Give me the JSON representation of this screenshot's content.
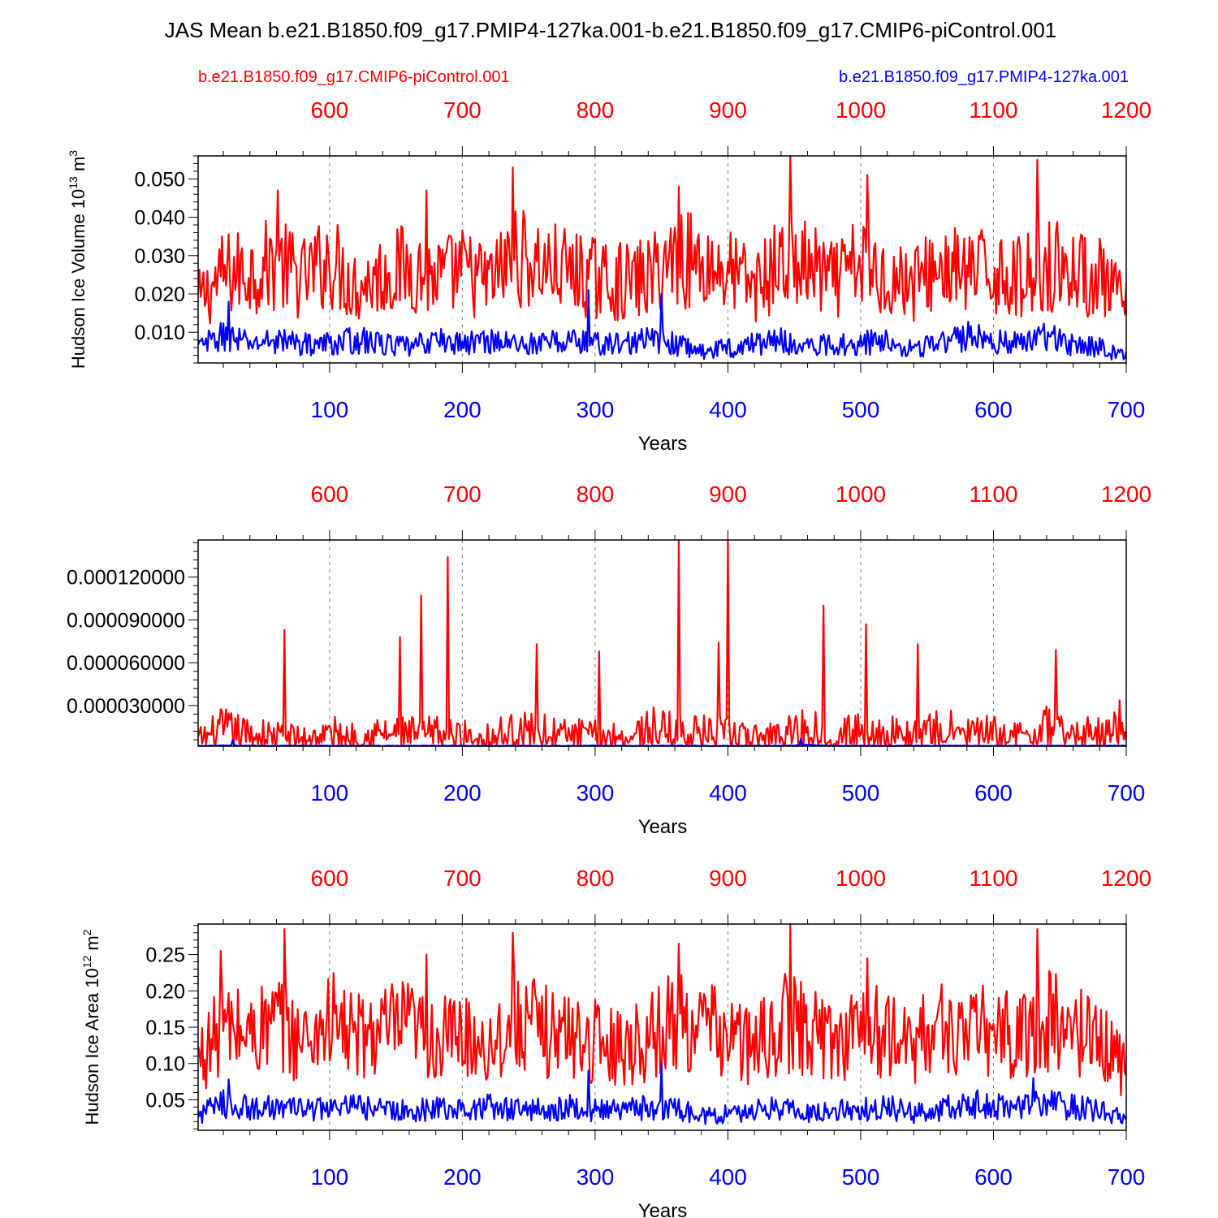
{
  "page": {
    "title": "JAS Mean b.e21.B1850.f09_g17.PMIP4-127ka.001-b.e21.B1850.f09_g17.CMIP6-piControl.001",
    "legend_left": "b.e21.B1850.f09_g17.CMIP6-piControl.001",
    "legend_right": "b.e21.B1850.f09_g17.PMIP4-127ka.001",
    "colors": {
      "control": "#ff0000",
      "pmip": "#0000ff",
      "axis": "#000000",
      "grid": "#808080"
    }
  },
  "chart_data": [
    {
      "type": "line",
      "title": "",
      "xlabel": "Years",
      "ylabel": "Hudson Ice Volume 10",
      "ylabel_exp": "13",
      "ylabel_unit": " m",
      "ylabel_unit_exp": "3",
      "xlim": [
        1,
        700
      ],
      "top_xlim": [
        501,
        1200
      ],
      "ylim": [
        0.002,
        0.056
      ],
      "yticks": [
        0.01,
        0.02,
        0.03,
        0.04,
        0.05
      ],
      "ytick_labels": [
        "0.010",
        "0.020",
        "0.030",
        "0.040",
        "0.050"
      ],
      "xticks": [
        100,
        200,
        300,
        400,
        500,
        600,
        700
      ],
      "top_xticks": [
        600,
        700,
        800,
        900,
        1000,
        1100,
        1200
      ],
      "grid": "vertical dashed at major x ticks",
      "series": [
        {
          "name": "b.e21.B1850.f09_g17.CMIP6-piControl.001",
          "color": "#ff0000",
          "x": [
            1,
            20,
            40,
            60,
            80,
            100,
            120,
            140,
            160,
            180,
            200,
            220,
            240,
            260,
            280,
            300,
            320,
            340,
            360,
            380,
            400,
            420,
            440,
            460,
            480,
            500,
            520,
            540,
            560,
            580,
            600,
            620,
            640,
            660,
            680,
            700
          ],
          "values": [
            0.018,
            0.025,
            0.026,
            0.028,
            0.024,
            0.029,
            0.022,
            0.025,
            0.027,
            0.024,
            0.026,
            0.023,
            0.03,
            0.027,
            0.026,
            0.024,
            0.023,
            0.024,
            0.03,
            0.028,
            0.026,
            0.022,
            0.028,
            0.027,
            0.023,
            0.028,
            0.024,
            0.023,
            0.027,
            0.025,
            0.026,
            0.024,
            0.028,
            0.026,
            0.024,
            0.017
          ]
        },
        {
          "name": "b.e21.B1850.f09_g17.PMIP4-127ka.001",
          "color": "#0000ff",
          "x": [
            1,
            20,
            40,
            60,
            80,
            100,
            120,
            140,
            160,
            180,
            200,
            220,
            240,
            260,
            280,
            300,
            320,
            340,
            360,
            380,
            400,
            420,
            440,
            460,
            480,
            500,
            520,
            540,
            560,
            580,
            600,
            620,
            640,
            660,
            680,
            700
          ],
          "values": [
            0.006,
            0.009,
            0.007,
            0.008,
            0.007,
            0.007,
            0.008,
            0.007,
            0.006,
            0.008,
            0.007,
            0.008,
            0.007,
            0.007,
            0.008,
            0.007,
            0.007,
            0.008,
            0.007,
            0.005,
            0.006,
            0.007,
            0.008,
            0.006,
            0.007,
            0.007,
            0.008,
            0.006,
            0.007,
            0.009,
            0.008,
            0.007,
            0.009,
            0.007,
            0.006,
            0.004
          ]
        }
      ],
      "peaks": [
        {
          "series": 0,
          "x": 447,
          "y": 0.056
        },
        {
          "series": 0,
          "x": 633,
          "y": 0.055
        },
        {
          "series": 0,
          "x": 238,
          "y": 0.053
        },
        {
          "series": 0,
          "x": 505,
          "y": 0.051
        },
        {
          "series": 0,
          "x": 363,
          "y": 0.048
        },
        {
          "series": 0,
          "x": 173,
          "y": 0.047
        },
        {
          "series": 0,
          "x": 61,
          "y": 0.047
        },
        {
          "series": 1,
          "x": 295,
          "y": 0.021
        },
        {
          "series": 1,
          "x": 350,
          "y": 0.02
        },
        {
          "series": 1,
          "x": 24,
          "y": 0.018
        }
      ]
    },
    {
      "type": "line",
      "title": "",
      "xlabel": "Years",
      "ylabel": "",
      "xlim": [
        1,
        700
      ],
      "top_xlim": [
        501,
        1200
      ],
      "ylim": [
        1.5e-06,
        0.000146
      ],
      "yticks": [
        3e-05,
        6e-05,
        9e-05,
        0.00012
      ],
      "ytick_labels": [
        "0.000030000",
        "0.000060000",
        "0.000090000",
        "0.000120000"
      ],
      "xticks": [
        100,
        200,
        300,
        400,
        500,
        600,
        700
      ],
      "top_xticks": [
        600,
        700,
        800,
        900,
        1000,
        1100,
        1200
      ],
      "grid": "vertical dashed at major x ticks",
      "series": [
        {
          "name": "b.e21.B1850.f09_g17.CMIP6-piControl.001",
          "color": "#ff0000",
          "x": [
            1,
            20,
            40,
            60,
            80,
            100,
            120,
            140,
            160,
            180,
            200,
            220,
            240,
            260,
            280,
            300,
            320,
            340,
            360,
            380,
            400,
            420,
            440,
            460,
            480,
            500,
            520,
            540,
            560,
            580,
            600,
            620,
            640,
            660,
            680,
            700
          ],
          "values": [
            8e-06,
            1.6e-05,
            1.2e-05,
            1.1e-05,
            9e-06,
            1.3e-05,
            1e-05,
            1.4e-05,
            1.2e-05,
            1.3e-05,
            1.1e-05,
            1e-05,
            1.5e-05,
            1.3e-05,
            1.2e-05,
            1.1e-05,
            1e-05,
            1.6e-05,
            1.4e-05,
            1.3e-05,
            1.2e-05,
            9e-06,
            1.5e-05,
            1.6e-05,
            1.2e-05,
            1.4e-05,
            1.3e-05,
            1.1e-05,
            1.5e-05,
            1.4e-05,
            1.2e-05,
            1.1e-05,
            1.6e-05,
            1.3e-05,
            1.2e-05,
            2.3e-05
          ]
        },
        {
          "name": "b.e21.B1850.f09_g17.PMIP4-127ka.001",
          "color": "#0000ff",
          "x": [
            1,
            20,
            40,
            60,
            80,
            100,
            120,
            140,
            160,
            180,
            200,
            220,
            240,
            260,
            280,
            300,
            320,
            340,
            360,
            380,
            400,
            420,
            440,
            460,
            480,
            500,
            520,
            540,
            560,
            580,
            600,
            620,
            640,
            660,
            680,
            700
          ],
          "values": [
            1.8e-06,
            2.1e-06,
            1.9e-06,
            1.8e-06,
            1.9e-06,
            1.8e-06,
            1.9e-06,
            1.8e-06,
            1.8e-06,
            1.9e-06,
            1.8e-06,
            1.8e-06,
            1.9e-06,
            1.8e-06,
            1.8e-06,
            1.9e-06,
            1.8e-06,
            1.8e-06,
            1.9e-06,
            1.8e-06,
            1.8e-06,
            1.9e-06,
            1.8e-06,
            2.5e-06,
            1.8e-06,
            1.9e-06,
            1.8e-06,
            1.8e-06,
            1.9e-06,
            1.8e-06,
            1.8e-06,
            1.9e-06,
            1.8e-06,
            1.8e-06,
            1.9e-06,
            1.8e-06
          ]
        }
      ],
      "peaks": [
        {
          "series": 0,
          "x": 363,
          "y": 0.000146
        },
        {
          "series": 0,
          "x": 400,
          "y": 0.000146
        },
        {
          "series": 0,
          "x": 189,
          "y": 0.000134
        },
        {
          "series": 0,
          "x": 169,
          "y": 0.000107
        },
        {
          "series": 0,
          "x": 472,
          "y": 0.0001
        },
        {
          "series": 0,
          "x": 504,
          "y": 8.7e-05
        },
        {
          "series": 0,
          "x": 66,
          "y": 8.3e-05
        },
        {
          "series": 0,
          "x": 153,
          "y": 7.8e-05
        },
        {
          "series": 0,
          "x": 393,
          "y": 7.4e-05
        },
        {
          "series": 0,
          "x": 256,
          "y": 7.3e-05
        },
        {
          "series": 0,
          "x": 543,
          "y": 7.3e-05
        },
        {
          "series": 0,
          "x": 647,
          "y": 6.9e-05
        },
        {
          "series": 0,
          "x": 303,
          "y": 6.8e-05
        },
        {
          "series": 1,
          "x": 27,
          "y": 6e-06
        },
        {
          "series": 1,
          "x": 455,
          "y": 7e-06
        }
      ]
    },
    {
      "type": "line",
      "title": "",
      "xlabel": "Years",
      "ylabel": "Hudson Ice Area 10",
      "ylabel_exp": "12",
      "ylabel_unit": " m",
      "ylabel_unit_exp": "2",
      "xlim": [
        1,
        700
      ],
      "top_xlim": [
        501,
        1200
      ],
      "ylim": [
        0.008,
        0.292
      ],
      "yticks": [
        0.05,
        0.1,
        0.15,
        0.2,
        0.25
      ],
      "ytick_labels": [
        "0.05",
        "0.10",
        "0.15",
        "0.20",
        "0.25"
      ],
      "xticks": [
        100,
        200,
        300,
        400,
        500,
        600,
        700
      ],
      "top_xticks": [
        600,
        700,
        800,
        900,
        1000,
        1100,
        1200
      ],
      "grid": "vertical dashed at major x ticks",
      "series": [
        {
          "name": "b.e21.B1850.f09_g17.CMIP6-piControl.001",
          "color": "#ff0000",
          "x": [
            1,
            20,
            40,
            60,
            80,
            100,
            120,
            140,
            160,
            180,
            200,
            220,
            240,
            260,
            280,
            300,
            320,
            340,
            360,
            380,
            400,
            420,
            440,
            460,
            480,
            500,
            520,
            540,
            560,
            580,
            600,
            620,
            640,
            660,
            680,
            700
          ],
          "values": [
            0.105,
            0.15,
            0.14,
            0.155,
            0.13,
            0.16,
            0.135,
            0.145,
            0.15,
            0.13,
            0.14,
            0.125,
            0.16,
            0.145,
            0.14,
            0.13,
            0.125,
            0.135,
            0.16,
            0.15,
            0.14,
            0.12,
            0.155,
            0.15,
            0.13,
            0.155,
            0.135,
            0.13,
            0.15,
            0.14,
            0.145,
            0.135,
            0.16,
            0.145,
            0.135,
            0.09
          ]
        },
        {
          "name": "b.e21.B1850.f09_g17.PMIP4-127ka.001",
          "color": "#0000ff",
          "x": [
            1,
            20,
            40,
            60,
            80,
            100,
            120,
            140,
            160,
            180,
            200,
            220,
            240,
            260,
            280,
            300,
            320,
            340,
            360,
            380,
            400,
            420,
            440,
            460,
            480,
            500,
            520,
            540,
            560,
            580,
            600,
            620,
            640,
            660,
            680,
            700
          ],
          "values": [
            0.03,
            0.045,
            0.038,
            0.04,
            0.037,
            0.038,
            0.04,
            0.037,
            0.034,
            0.04,
            0.036,
            0.04,
            0.037,
            0.036,
            0.04,
            0.036,
            0.035,
            0.04,
            0.037,
            0.028,
            0.03,
            0.035,
            0.04,
            0.033,
            0.036,
            0.037,
            0.04,
            0.032,
            0.037,
            0.045,
            0.042,
            0.038,
            0.045,
            0.04,
            0.035,
            0.028
          ]
        }
      ],
      "peaks": [
        {
          "series": 0,
          "x": 447,
          "y": 0.292
        },
        {
          "series": 0,
          "x": 66,
          "y": 0.285
        },
        {
          "series": 0,
          "x": 238,
          "y": 0.28
        },
        {
          "series": 0,
          "x": 633,
          "y": 0.285
        },
        {
          "series": 0,
          "x": 18,
          "y": 0.255
        },
        {
          "series": 0,
          "x": 173,
          "y": 0.25
        },
        {
          "series": 0,
          "x": 505,
          "y": 0.245
        },
        {
          "series": 0,
          "x": 363,
          "y": 0.265
        },
        {
          "series": 1,
          "x": 350,
          "y": 0.1
        },
        {
          "series": 1,
          "x": 295,
          "y": 0.09
        },
        {
          "series": 1,
          "x": 630,
          "y": 0.08
        },
        {
          "series": 1,
          "x": 24,
          "y": 0.078
        }
      ]
    }
  ]
}
